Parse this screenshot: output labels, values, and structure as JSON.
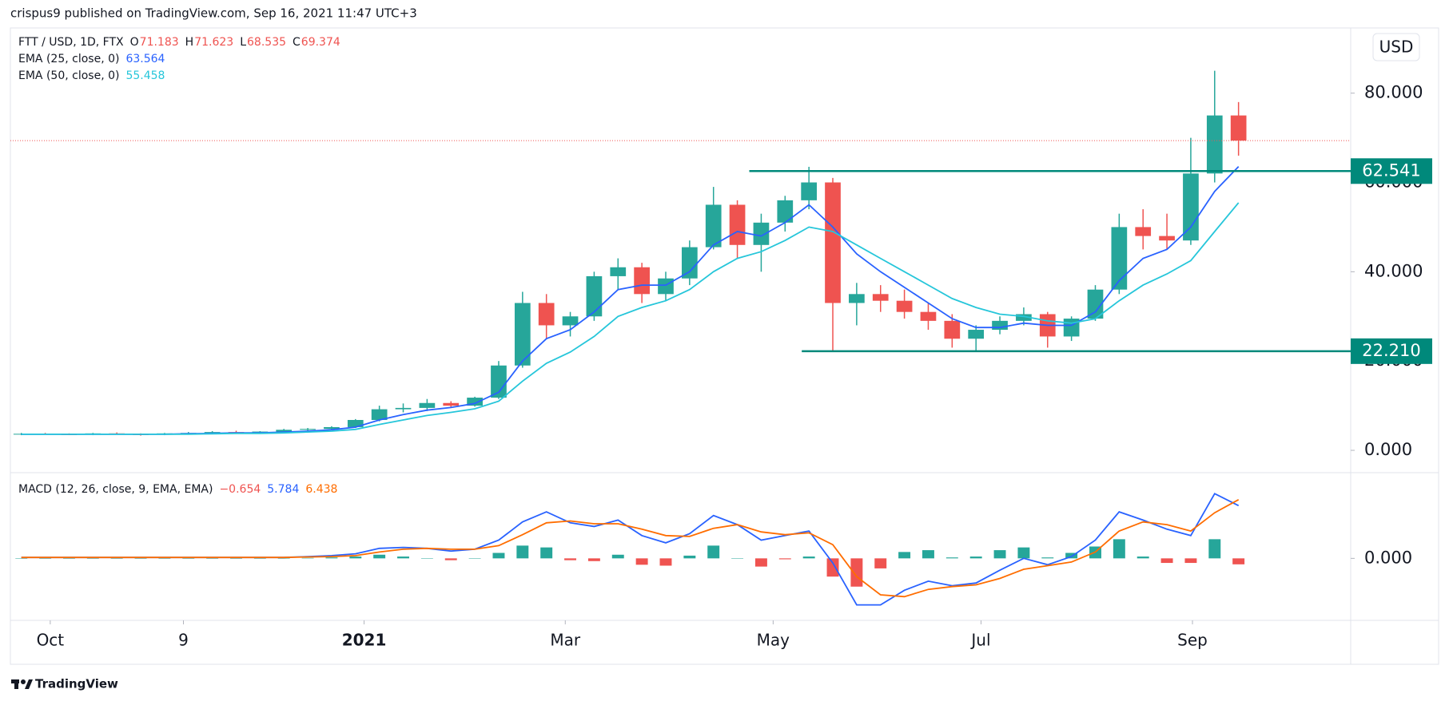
{
  "header": {
    "text": "crispus9 published on TradingView.com, Sep 16, 2021 11:47 UTC+3"
  },
  "currency_button": "USD",
  "footer": {
    "logo_text": "TradingView"
  },
  "chart_data": [
    {
      "type": "candlestick",
      "legend": {
        "symbol": "FTT / USD, 1D, FTX",
        "ohlc": [
          {
            "key": "O",
            "value": "71.183"
          },
          {
            "key": "H",
            "value": "71.623"
          },
          {
            "key": "L",
            "value": "68.535"
          },
          {
            "key": "C",
            "value": "69.374"
          }
        ]
      },
      "up_color": "#26a69a",
      "down_color": "#ef5350",
      "ohlc": [
        [
          3.6,
          3.9,
          3.4,
          3.7
        ],
        [
          3.7,
          3.9,
          3.5,
          3.6
        ],
        [
          3.6,
          3.8,
          3.4,
          3.5
        ],
        [
          3.5,
          3.9,
          3.4,
          3.8
        ],
        [
          3.8,
          4.0,
          3.5,
          3.6
        ],
        [
          3.6,
          3.8,
          3.3,
          3.5
        ],
        [
          3.5,
          3.9,
          3.4,
          3.8
        ],
        [
          3.8,
          4.1,
          3.6,
          3.9
        ],
        [
          3.9,
          4.3,
          3.7,
          4.1
        ],
        [
          4.1,
          4.4,
          3.8,
          4.0
        ],
        [
          4.0,
          4.3,
          3.8,
          4.2
        ],
        [
          4.2,
          4.8,
          4.0,
          4.6
        ],
        [
          4.6,
          5.0,
          4.3,
          4.8
        ],
        [
          4.8,
          5.4,
          4.5,
          5.2
        ],
        [
          5.2,
          7.0,
          5.0,
          6.8
        ],
        [
          6.8,
          10.0,
          6.5,
          9.2
        ],
        [
          9.2,
          10.5,
          8.5,
          9.5
        ],
        [
          9.5,
          11.5,
          8.8,
          10.6
        ],
        [
          10.6,
          11.0,
          9.5,
          10.0
        ],
        [
          10.0,
          12.0,
          9.8,
          11.8
        ],
        [
          11.8,
          20,
          11.5,
          19
        ],
        [
          19,
          35.5,
          18.5,
          33
        ],
        [
          33,
          35,
          25,
          28
        ],
        [
          28,
          31,
          25.5,
          30
        ],
        [
          30,
          40,
          29,
          39
        ],
        [
          39,
          43,
          36,
          41
        ],
        [
          41,
          42,
          33,
          35
        ],
        [
          35,
          40,
          33.5,
          38.5
        ],
        [
          38.5,
          47,
          37,
          45.5
        ],
        [
          45.5,
          59,
          45,
          55
        ],
        [
          55,
          56,
          43,
          46
        ],
        [
          46,
          53,
          40,
          51
        ],
        [
          51,
          57,
          49,
          56
        ],
        [
          56,
          63.5,
          54,
          60
        ],
        [
          60,
          61,
          22.2,
          33
        ],
        [
          33,
          37.5,
          28,
          35
        ],
        [
          35,
          37,
          31,
          33.5
        ],
        [
          33.5,
          36,
          29.5,
          31
        ],
        [
          31,
          33,
          27,
          29
        ],
        [
          29,
          30.5,
          23,
          25
        ],
        [
          25,
          28,
          22.2,
          27
        ],
        [
          27,
          30,
          26,
          29
        ],
        [
          29,
          32,
          28,
          30.5
        ],
        [
          30.5,
          31,
          23,
          25.5
        ],
        [
          25.5,
          30,
          24.5,
          29.5
        ],
        [
          29.5,
          37,
          29,
          36
        ],
        [
          36,
          53,
          35,
          50
        ],
        [
          50,
          54,
          45,
          48
        ],
        [
          48,
          53,
          45,
          47
        ],
        [
          47,
          70,
          46,
          62
        ],
        [
          62,
          85,
          60,
          75
        ],
        [
          75,
          78,
          66,
          69.374
        ]
      ],
      "overlays": [
        {
          "name": "EMA (25, close, 0)",
          "color": "#2962ff",
          "values": [
            3.6,
            3.6,
            3.6,
            3.6,
            3.6,
            3.6,
            3.6,
            3.7,
            3.8,
            3.9,
            3.9,
            4.1,
            4.3,
            4.6,
            5.2,
            6.8,
            8.0,
            9.0,
            9.6,
            10.5,
            13,
            20,
            25,
            27,
            31,
            36,
            37,
            37,
            40,
            46,
            49,
            48,
            51,
            55,
            50,
            44,
            40,
            36.5,
            33,
            29.5,
            27.5,
            27.5,
            28.5,
            28,
            28,
            31,
            38,
            43,
            45,
            50,
            58,
            63.564
          ]
        },
        {
          "name": "EMA (50, close, 0)",
          "color": "#26c6da",
          "values": [
            3.6,
            3.6,
            3.6,
            3.6,
            3.6,
            3.6,
            3.6,
            3.6,
            3.7,
            3.8,
            3.8,
            3.9,
            4.1,
            4.3,
            4.7,
            5.8,
            6.8,
            7.8,
            8.5,
            9.3,
            11,
            15.5,
            19.5,
            22,
            25.5,
            30,
            32,
            33.5,
            36,
            40,
            43,
            44.5,
            47,
            50,
            49,
            46,
            43,
            40,
            37,
            34,
            32,
            30.5,
            30,
            29,
            28.5,
            29.5,
            33.5,
            37,
            39.5,
            42.5,
            49,
            55.458
          ]
        }
      ],
      "hlines": [
        {
          "value": 62.541,
          "label": "62.541",
          "x_start": 30.5,
          "color": "#00897b"
        },
        {
          "value": 22.21,
          "label": "22.210",
          "x_start": 32.7,
          "color": "#00897b"
        }
      ],
      "last_price_line_color": "#ef5350",
      "xlim": [
        -0.46,
        55.7
      ],
      "xticks": [
        {
          "value": 1.21,
          "label": "Oct"
        },
        {
          "value": 6.79,
          "label": "9"
        },
        {
          "value": 14.36,
          "label": "2021",
          "bold": true
        },
        {
          "value": 22.79,
          "label": "Mar"
        },
        {
          "value": 31.5,
          "label": "May"
        },
        {
          "value": 40.21,
          "label": "Jul"
        },
        {
          "value": 49.07,
          "label": "Sep"
        }
      ],
      "ylim": [
        -5,
        94.6
      ],
      "yticks": [
        {
          "value": 0,
          "label": "0.000"
        },
        {
          "value": 20,
          "label": "20.000"
        },
        {
          "value": 40,
          "label": "40.000"
        },
        {
          "value": 60,
          "label": "60.000"
        },
        {
          "value": 80,
          "label": "80.000"
        }
      ],
      "grid": false
    },
    {
      "type": "macd",
      "title": "MACD (12, 26, close, 9, EMA, EMA)",
      "series": [
        {
          "name": "MACD",
          "color": "#2962ff",
          "values": [
            0.1,
            0.1,
            0.1,
            0.1,
            0.1,
            0.1,
            0.1,
            0.1,
            0.1,
            0.1,
            0.1,
            0.1,
            0.2,
            0.3,
            0.5,
            1.1,
            1.2,
            1.1,
            0.8,
            1.0,
            2.0,
            4.0,
            5.1,
            3.9,
            3.5,
            4.2,
            2.5,
            1.7,
            2.7,
            4.7,
            3.7,
            2.0,
            2.5,
            3.0,
            -0.5,
            -5.1,
            -5.1,
            -3.5,
            -2.5,
            -3.0,
            -2.7,
            -1.3,
            0,
            -0.7,
            0.2,
            2.0,
            5.1,
            4.2,
            3.2,
            2.5,
            7.1,
            5.784
          ]
        },
        {
          "name": "Signal",
          "color": "#ff6d00",
          "values": [
            0.1,
            0.1,
            0.1,
            0.1,
            0.1,
            0.1,
            0.1,
            0.1,
            0.1,
            0.1,
            0.1,
            0.1,
            0.15,
            0.2,
            0.3,
            0.7,
            1.0,
            1.1,
            1.0,
            1.0,
            1.4,
            2.6,
            3.9,
            4.1,
            3.8,
            3.8,
            3.2,
            2.5,
            2.4,
            3.3,
            3.7,
            2.9,
            2.6,
            2.8,
            1.5,
            -2.0,
            -4.0,
            -4.2,
            -3.4,
            -3.1,
            -2.9,
            -2.2,
            -1.2,
            -0.8,
            -0.4,
            0.7,
            3.0,
            4.0,
            3.7,
            3.0,
            5.0,
            6.438
          ]
        }
      ],
      "histogram": {
        "colors": [
          "#26a69a",
          "#ef5350"
        ],
        "legend_value_label": "−0.654",
        "values": [
          0,
          0,
          0,
          0,
          0,
          0,
          0,
          0,
          0,
          0,
          0,
          0,
          0.05,
          0.1,
          0.2,
          0.4,
          0.2,
          0,
          -0.2,
          0,
          0.6,
          1.4,
          1.2,
          -0.2,
          -0.3,
          0.4,
          -0.7,
          -0.8,
          0.3,
          1.4,
          0,
          -0.9,
          -0.1,
          0.2,
          -2.0,
          -3.1,
          -1.1,
          0.7,
          0.9,
          0.1,
          0.2,
          0.9,
          1.2,
          0.1,
          0.6,
          1.3,
          2.1,
          0.2,
          -0.5,
          -0.5,
          2.1,
          -0.654
        ]
      },
      "ylim": [
        -6.8,
        9.4
      ],
      "yticks": [
        {
          "value": 0,
          "label": "0.000"
        }
      ]
    }
  ]
}
